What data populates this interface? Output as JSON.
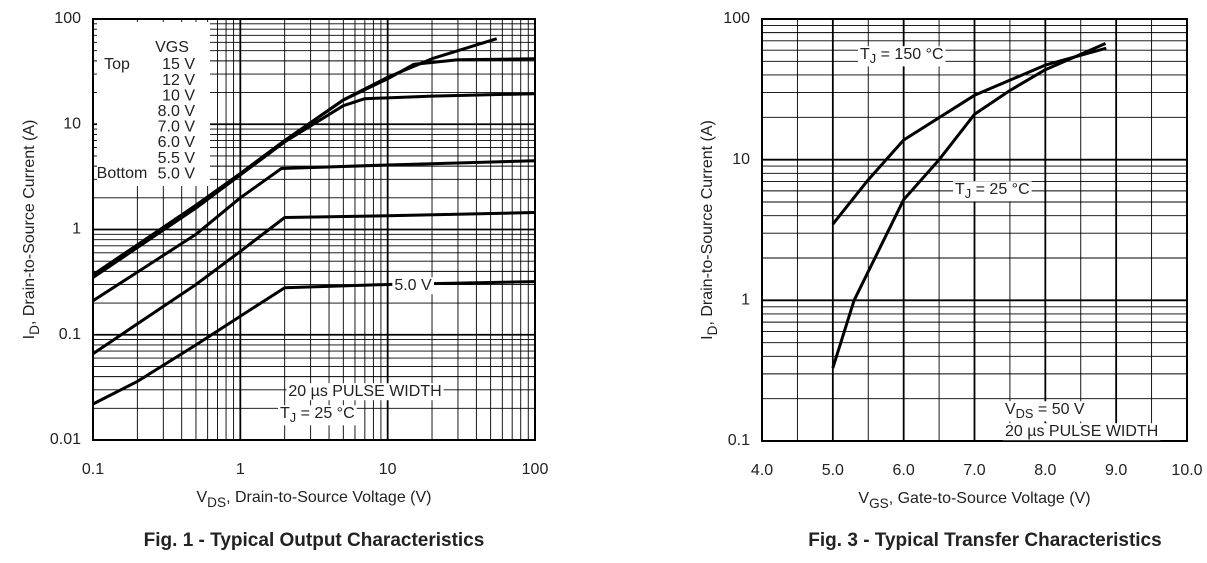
{
  "chart_data": [
    {
      "type": "line",
      "title": "Fig. 1 - Typical Output Characteristics",
      "xlabel": [
        "V",
        "DS",
        ", Drain-to-Source Voltage (V)"
      ],
      "ylabel": [
        "I",
        "D",
        ", Drain-to-Source Current (A)"
      ],
      "xscale": "log",
      "yscale": "log",
      "grid": true,
      "xlim": [
        0.1,
        100
      ],
      "ylim": [
        0.01,
        100
      ],
      "xticks": [
        0.1,
        1,
        10,
        100
      ],
      "yticks": [
        0.01,
        0.1,
        1,
        10,
        100
      ],
      "legend": {
        "title": "VGS",
        "top": "Top",
        "bottom": "Bottom",
        "labels": [
          "15 V",
          "12 V",
          "10 V",
          "8.0 V",
          "7.0 V",
          "6.0 V",
          "5.5 V",
          "5.0 V"
        ]
      },
      "annotations": [
        [
          "5.0 V"
        ],
        [
          "20 µs PULSE WIDTH"
        ],
        [
          "T",
          "J",
          " = 25 °C"
        ]
      ],
      "series": [
        {
          "color": "#000000",
          "x": [
            0.1,
            0.5,
            1,
            2,
            5,
            10,
            20,
            55
          ],
          "values": [
            0.37,
            1.7,
            3.4,
            7,
            17,
            28,
            42,
            65
          ]
        },
        {
          "color": "#000000",
          "x": [
            0.1,
            0.5,
            1,
            2,
            5,
            10,
            15,
            30,
            100
          ],
          "values": [
            0.37,
            1.7,
            3.4,
            7,
            17,
            27,
            37,
            41,
            42
          ]
        },
        {
          "color": "#000000",
          "x": [
            0.1,
            0.5,
            1,
            2,
            5,
            7,
            20,
            100
          ],
          "values": [
            0.35,
            1.6,
            3.3,
            6.8,
            15,
            17.5,
            18.5,
            19.5
          ]
        },
        {
          "color": "#000000",
          "x": [
            0.1,
            0.5,
            1,
            1.9,
            10,
            100
          ],
          "values": [
            0.21,
            0.9,
            2,
            3.8,
            4.1,
            4.5
          ]
        },
        {
          "color": "#000000",
          "x": [
            0.1,
            0.5,
            1,
            2,
            10,
            100
          ],
          "values": [
            0.066,
            0.3,
            0.62,
            1.3,
            1.35,
            1.45
          ]
        },
        {
          "color": "#000000",
          "x": [
            0.1,
            0.2,
            0.5,
            1,
            2,
            10,
            100
          ],
          "values": [
            0.022,
            0.036,
            0.08,
            0.15,
            0.28,
            0.3,
            0.32
          ]
        }
      ]
    },
    {
      "type": "line",
      "title": "Fig. 3 - Typical Transfer Characteristics",
      "xlabel": [
        "V",
        "GS",
        ", Gate-to-Source Voltage (V)"
      ],
      "ylabel": [
        "I",
        "D",
        ", Drain-to-Source Current (A)"
      ],
      "xscale": "linear",
      "yscale": "log",
      "grid": true,
      "xlim": [
        4,
        10
      ],
      "ylim": [
        0.1,
        100
      ],
      "xticks": [
        {
          "value": 4,
          "label": "4.0"
        },
        {
          "value": 5,
          "label": "5.0"
        },
        {
          "value": 6,
          "label": "6.0"
        },
        {
          "value": 7,
          "label": "7.0"
        },
        {
          "value": 8,
          "label": "8.0"
        },
        {
          "value": 9,
          "label": "9.0"
        },
        {
          "value": 10,
          "label": "10.0"
        }
      ],
      "yticks": [
        0.1,
        1,
        10,
        100
      ],
      "annotations": [
        [
          "T",
          "J",
          " = 150 °C"
        ],
        [
          "T",
          "J",
          " = 25 °C"
        ],
        [
          "V",
          "DS",
          " = 50 V"
        ],
        [
          "20 µs PULSE WIDTH"
        ]
      ],
      "series": [
        {
          "color": "#000000",
          "x": [
            5,
            5.5,
            6,
            7,
            8,
            8.86
          ],
          "values": [
            3.48,
            7.2,
            13.8,
            28.7,
            47,
            62
          ]
        },
        {
          "color": "#000000",
          "x": [
            5,
            5.3,
            6,
            6.5,
            7,
            7.5,
            8,
            8.85
          ],
          "values": [
            0.33,
            1,
            5.2,
            10,
            21,
            31,
            43.6,
            67
          ]
        }
      ]
    }
  ]
}
